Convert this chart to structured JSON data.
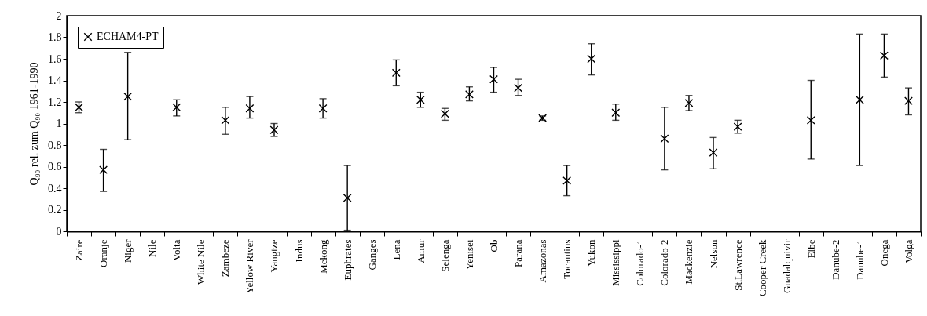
{
  "chart_data": {
    "type": "scatter",
    "ylabel": "Q₉₀ rel. zum Q₉₀ 1961-1990",
    "categories": [
      "Zaire",
      "Oranje",
      "Niger",
      "Nile",
      "Volta",
      "White Nile",
      "Zambeze",
      "Yellow River",
      "Yangtze",
      "Indus",
      "Mekong",
      "Euphrates",
      "Ganges",
      "Lena",
      "Amur",
      "Selenga",
      "Yenisei",
      "Ob",
      "Parana",
      "Amazonas",
      "Tocantins",
      "Yukon",
      "Mississippi",
      "Colorado-1",
      "Colorado-2",
      "Mackenzie",
      "Nelson",
      "St.Lawrence",
      "Cooper Creek",
      "Guadalquivir",
      "Elbe",
      "Danube-2",
      "Danube-1",
      "Onega",
      "Volga"
    ],
    "series": [
      {
        "name": "ECHAM4-PT",
        "color": "#000000",
        "values": [
          1.15,
          0.57,
          1.25,
          null,
          1.15,
          null,
          1.03,
          1.14,
          0.94,
          null,
          1.14,
          0.31,
          null,
          1.47,
          1.22,
          1.09,
          1.27,
          1.41,
          1.33,
          1.05,
          0.47,
          1.6,
          1.1,
          null,
          0.86,
          1.19,
          0.73,
          0.97,
          null,
          null,
          1.03,
          null,
          1.22,
          1.63,
          1.21
        ],
        "errors": [
          [
            1.1,
            1.2
          ],
          [
            0.37,
            0.76
          ],
          [
            0.85,
            1.66
          ],
          null,
          [
            1.07,
            1.22
          ],
          null,
          [
            0.9,
            1.15
          ],
          [
            1.05,
            1.25
          ],
          [
            0.88,
            1.0
          ],
          null,
          [
            1.05,
            1.23
          ],
          [
            0.01,
            0.61
          ],
          null,
          [
            1.35,
            1.59
          ],
          [
            1.15,
            1.29
          ],
          [
            1.03,
            1.14
          ],
          [
            1.21,
            1.34
          ],
          [
            1.29,
            1.52
          ],
          [
            1.26,
            1.41
          ],
          [
            1.03,
            1.07
          ],
          [
            0.33,
            0.61
          ],
          [
            1.45,
            1.74
          ],
          [
            1.03,
            1.18
          ],
          null,
          [
            0.57,
            1.15
          ],
          [
            1.12,
            1.26
          ],
          [
            0.58,
            0.87
          ],
          [
            0.91,
            1.03
          ],
          null,
          null,
          [
            0.67,
            1.4
          ],
          null,
          [
            0.61,
            1.83
          ],
          [
            1.43,
            1.83
          ],
          [
            1.08,
            1.33
          ]
        ]
      }
    ],
    "ylim": [
      0,
      2
    ],
    "yticks": [
      0,
      0.2,
      0.4,
      0.6,
      0.8,
      1,
      1.2,
      1.4,
      1.6,
      1.8,
      2
    ],
    "marker": "cross",
    "legend": "top left",
    "grid": false
  }
}
